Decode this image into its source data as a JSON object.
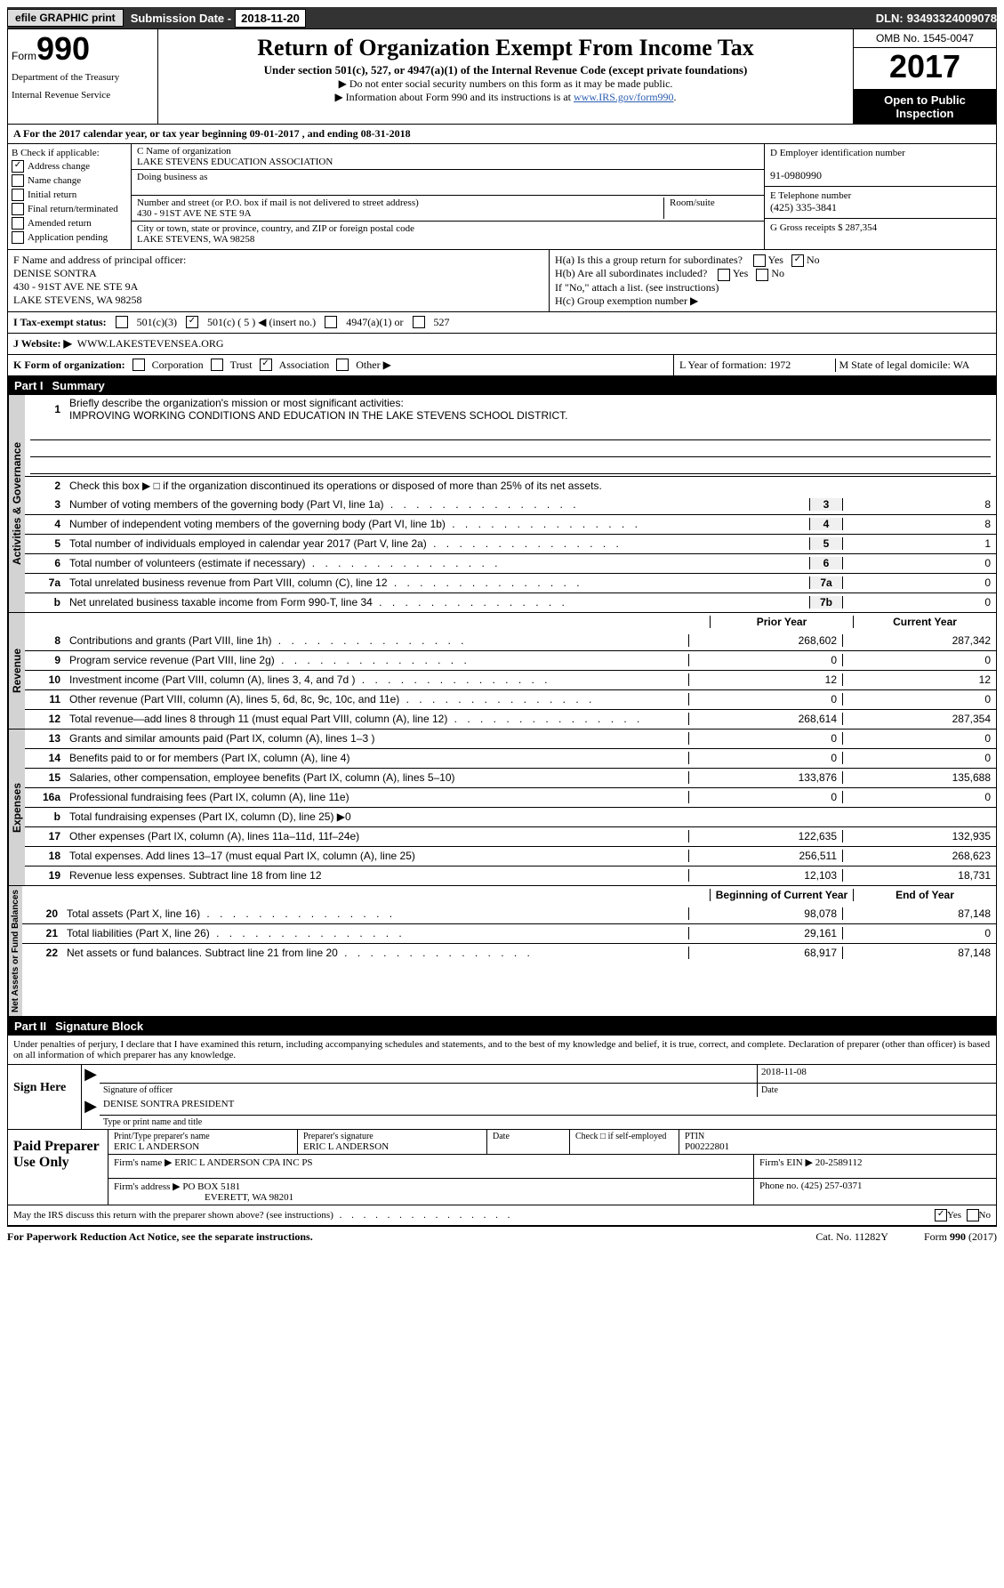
{
  "topbar": {
    "btn": "efile GRAPHIC print",
    "sub_label": "Submission Date - ",
    "sub_date": "2018-11-20",
    "dln_label": "DLN: ",
    "dln": "93493324009078"
  },
  "header": {
    "form_small": "Form",
    "form_no": "990",
    "dept1": "Department of the Treasury",
    "dept2": "Internal Revenue Service",
    "title": "Return of Organization Exempt From Income Tax",
    "subtitle": "Under section 501(c), 527, or 4947(a)(1) of the Internal Revenue Code (except private foundations)",
    "note1": "▶ Do not enter social security numbers on this form as it may be made public.",
    "note2_pre": "▶ Information about Form 990 and its instructions is at ",
    "note2_link": "www.IRS.gov/form990",
    "omb": "OMB No. 1545-0047",
    "year": "2017",
    "open": "Open to Public Inspection"
  },
  "rowA": "A  For the 2017 calendar year, or tax year beginning 09-01-2017   , and ending 08-31-2018",
  "boxB": {
    "title": "B Check if applicable:",
    "items": [
      "Address change",
      "Name change",
      "Initial return",
      "Final return/terminated",
      "Amended return",
      "Application pending"
    ]
  },
  "boxC": {
    "name_lbl": "C Name of organization",
    "name": "LAKE STEVENS EDUCATION ASSOCIATION",
    "dba_lbl": "Doing business as",
    "street_lbl": "Number and street (or P.O. box if mail is not delivered to street address)",
    "street": "430 - 91ST AVE NE STE 9A",
    "room_lbl": "Room/suite",
    "city_lbl": "City or town, state or province, country, and ZIP or foreign postal code",
    "city": "LAKE STEVENS, WA  98258"
  },
  "boxD": {
    "ein_lbl": "D Employer identification number",
    "ein": "91-0980990",
    "tel_lbl": "E Telephone number",
    "tel": "(425) 335-3841",
    "gross_lbl": "G Gross receipts $ ",
    "gross": "287,354"
  },
  "boxF": {
    "lbl": "F  Name and address of principal officer:",
    "name": "DENISE SONTRA",
    "addr1": "430 - 91ST AVE NE STE 9A",
    "addr2": "LAKE STEVENS, WA  98258"
  },
  "boxH": {
    "ha": "H(a)  Is this a group return for subordinates?",
    "hb": "H(b)  Are all subordinates included?",
    "hb_note": "If \"No,\" attach a list. (see instructions)",
    "hc": "H(c)  Group exemption number ▶",
    "yes": "Yes",
    "no": "No"
  },
  "lineI": {
    "lbl": "I   Tax-exempt status:",
    "opt1": "501(c)(3)",
    "opt2": "501(c) ( 5 ) ◀ (insert no.)",
    "opt3": "4947(a)(1) or",
    "opt4": "527"
  },
  "lineJ": {
    "lbl": "J  Website: ▶",
    "val": "WWW.LAKESTEVENSEA.ORG"
  },
  "lineK": {
    "lbl": "K Form of organization:",
    "o1": "Corporation",
    "o2": "Trust",
    "o3": "Association",
    "o4": "Other ▶"
  },
  "lineL": "L Year of formation: 1972",
  "lineM": "M State of legal domicile: WA",
  "part1": {
    "no": "Part I",
    "title": "Summary"
  },
  "gov": {
    "label": "Activities & Governance",
    "l1": "Briefly describe the organization's mission or most significant activities:",
    "l1v": "IMPROVING WORKING CONDITIONS AND EDUCATION IN THE LAKE STEVENS SCHOOL DISTRICT.",
    "l2": "Check this box ▶ □  if the organization discontinued its operations or disposed of more than 25% of its net assets.",
    "rows": [
      {
        "n": "3",
        "t": "Number of voting members of the governing body (Part VI, line 1a)",
        "k": "3",
        "v": "8"
      },
      {
        "n": "4",
        "t": "Number of independent voting members of the governing body (Part VI, line 1b)",
        "k": "4",
        "v": "8"
      },
      {
        "n": "5",
        "t": "Total number of individuals employed in calendar year 2017 (Part V, line 2a)",
        "k": "5",
        "v": "1"
      },
      {
        "n": "6",
        "t": "Total number of volunteers (estimate if necessary)",
        "k": "6",
        "v": "0"
      },
      {
        "n": "7a",
        "t": "Total unrelated business revenue from Part VIII, column (C), line 12",
        "k": "7a",
        "v": "0"
      },
      {
        "n": "b",
        "t": "Net unrelated business taxable income from Form 990-T, line 34",
        "k": "7b",
        "v": "0"
      }
    ]
  },
  "rev": {
    "label": "Revenue",
    "hdr_prior": "Prior Year",
    "hdr_cur": "Current Year",
    "rows": [
      {
        "n": "8",
        "t": "Contributions and grants (Part VIII, line 1h)",
        "p": "268,602",
        "c": "287,342"
      },
      {
        "n": "9",
        "t": "Program service revenue (Part VIII, line 2g)",
        "p": "0",
        "c": "0"
      },
      {
        "n": "10",
        "t": "Investment income (Part VIII, column (A), lines 3, 4, and 7d )",
        "p": "12",
        "c": "12"
      },
      {
        "n": "11",
        "t": "Other revenue (Part VIII, column (A), lines 5, 6d, 8c, 9c, 10c, and 11e)",
        "p": "0",
        "c": "0"
      },
      {
        "n": "12",
        "t": "Total revenue—add lines 8 through 11 (must equal Part VIII, column (A), line 12)",
        "p": "268,614",
        "c": "287,354"
      }
    ]
  },
  "exp": {
    "label": "Expenses",
    "rows": [
      {
        "n": "13",
        "t": "Grants and similar amounts paid (Part IX, column (A), lines 1–3 )",
        "p": "0",
        "c": "0"
      },
      {
        "n": "14",
        "t": "Benefits paid to or for members (Part IX, column (A), line 4)",
        "p": "0",
        "c": "0"
      },
      {
        "n": "15",
        "t": "Salaries, other compensation, employee benefits (Part IX, column (A), lines 5–10)",
        "p": "133,876",
        "c": "135,688"
      },
      {
        "n": "16a",
        "t": "Professional fundraising fees (Part IX, column (A), line 11e)",
        "p": "0",
        "c": "0"
      },
      {
        "n": "b",
        "t": "Total fundraising expenses (Part IX, column (D), line 25) ▶0",
        "p": "",
        "c": "",
        "shade": true
      },
      {
        "n": "17",
        "t": "Other expenses (Part IX, column (A), lines 11a–11d, 11f–24e)",
        "p": "122,635",
        "c": "132,935"
      },
      {
        "n": "18",
        "t": "Total expenses. Add lines 13–17 (must equal Part IX, column (A), line 25)",
        "p": "256,511",
        "c": "268,623"
      },
      {
        "n": "19",
        "t": "Revenue less expenses. Subtract line 18 from line 12",
        "p": "12,103",
        "c": "18,731"
      }
    ]
  },
  "net": {
    "label": "Net Assets or Fund Balances",
    "hdr_b": "Beginning of Current Year",
    "hdr_e": "End of Year",
    "rows": [
      {
        "n": "20",
        "t": "Total assets (Part X, line 16)",
        "p": "98,078",
        "c": "87,148"
      },
      {
        "n": "21",
        "t": "Total liabilities (Part X, line 26)",
        "p": "29,161",
        "c": "0"
      },
      {
        "n": "22",
        "t": "Net assets or fund balances. Subtract line 21 from line 20",
        "p": "68,917",
        "c": "87,148"
      }
    ]
  },
  "part2": {
    "no": "Part II",
    "title": "Signature Block"
  },
  "sig_decl": "Under penalties of perjury, I declare that I have examined this return, including accompanying schedules and statements, and to the best of my knowledge and belief, it is true, correct, and complete. Declaration of preparer (other than officer) is based on all information of which preparer has any knowledge.",
  "sig": {
    "here": "Sign Here",
    "date": "2018-11-08",
    "off_lbl": "Signature of officer",
    "date_lbl": "Date",
    "name": "DENISE SONTRA PRESIDENT",
    "name_lbl": "Type or print name and title"
  },
  "prep": {
    "lbl": "Paid Preparer Use Only",
    "r1_c1_lbl": "Print/Type preparer's name",
    "r1_c1": "ERIC L ANDERSON",
    "r1_c2_lbl": "Preparer's signature",
    "r1_c2": "ERIC L ANDERSON",
    "r1_c3_lbl": "Date",
    "r1_c4": "Check □  if self-employed",
    "r1_c5_lbl": "PTIN",
    "r1_c5": "P00222801",
    "r2_lbl": "Firm's name    ▶",
    "r2": "ERIC L ANDERSON CPA INC PS",
    "r2b_lbl": "Firm's EIN ▶",
    "r2b": "20-2589112",
    "r3_lbl": "Firm's address ▶",
    "r3": "PO BOX 5181",
    "r3b_lbl": "Phone no.",
    "r3b": "(425) 257-0371",
    "r3c": "EVERETT, WA  98201"
  },
  "discuss": "May the IRS discuss this return with the preparer shown above? (see instructions)",
  "footer": {
    "l": "For Paperwork Reduction Act Notice, see the separate instructions.",
    "m": "Cat. No. 11282Y",
    "r": "Form 990 (2017)"
  },
  "yes": "Yes",
  "no": "No"
}
